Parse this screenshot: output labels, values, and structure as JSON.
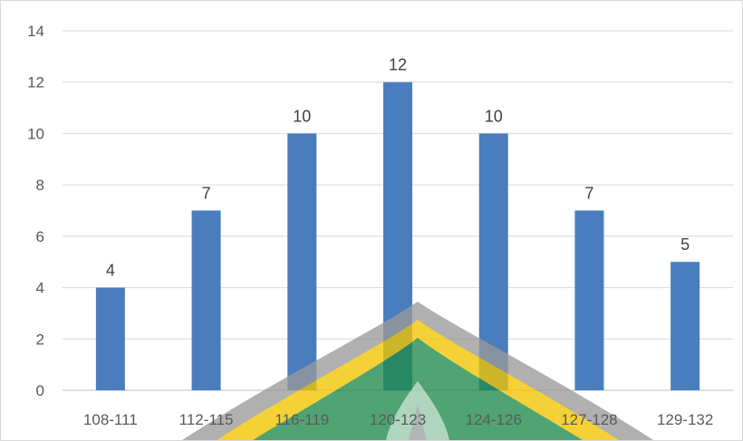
{
  "chart_data": {
    "type": "bar",
    "categories": [
      "108-111",
      "112-115",
      "116-119",
      "120-123",
      "124-126",
      "127-128",
      "129-132"
    ],
    "values": [
      4,
      7,
      10,
      12,
      10,
      7,
      5
    ],
    "title": "",
    "xlabel": "",
    "ylabel": "",
    "ylim": [
      0,
      14
    ],
    "yticks": [
      0,
      2,
      4,
      6,
      8,
      10,
      12,
      14
    ],
    "grid": true,
    "legend": "none",
    "bar_color": "#4a7dbd"
  },
  "watermark": {
    "description": "university emblem",
    "colors": [
      "#1f8a4c",
      "#f2c500",
      "#9a9a9a"
    ]
  }
}
